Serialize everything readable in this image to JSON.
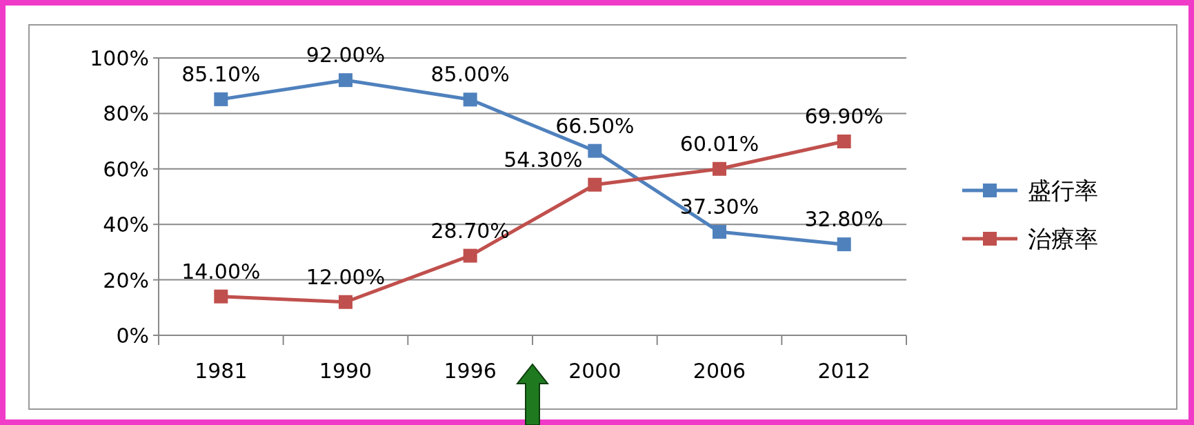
{
  "chart_data": {
    "type": "line",
    "categories": [
      "1981",
      "1990",
      "1996",
      "2000",
      "2006",
      "2012"
    ],
    "series": [
      {
        "name": "盛行率",
        "color": "#4f81bd",
        "values": [
          85.1,
          92,
          85,
          66.5,
          37.3,
          32.8
        ],
        "value_labels": [
          "85.10%",
          "92.00%",
          "85.00%",
          "66.50%",
          "37.30%",
          "32.80%"
        ]
      },
      {
        "name": "治療率",
        "color": "#c0504d",
        "values": [
          14,
          12,
          28.7,
          54.3,
          60.01,
          69.9
        ],
        "value_labels": [
          "14.00%",
          "12.00%",
          "28.70%",
          "54.30%",
          "60.01%",
          "69.90%"
        ]
      }
    ],
    "ylim": [
      0,
      100
    ],
    "yticks": [
      {
        "value": 0,
        "label": "0%"
      },
      {
        "value": 20,
        "label": "20%"
      },
      {
        "value": 40,
        "label": "40%"
      },
      {
        "value": 60,
        "label": "60%"
      },
      {
        "value": 80,
        "label": "80%"
      },
      {
        "value": 100,
        "label": "100%"
      }
    ],
    "grid": "y",
    "legend": "right",
    "marker": "square",
    "line_style": "solid"
  }
}
